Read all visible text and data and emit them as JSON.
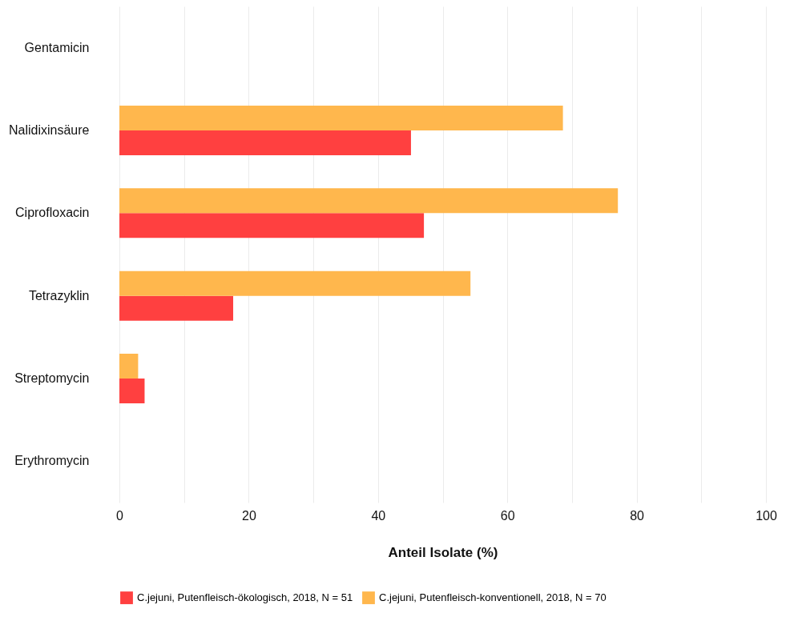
{
  "chart_data": {
    "type": "bar",
    "orientation": "horizontal",
    "xlabel": "Anteil Isolate (%)",
    "categories": [
      "Gentamicin",
      "Nalidixinsäure",
      "Ciprofloxacin",
      "Tetrazyklin",
      "Streptomycin",
      "Erythromycin"
    ],
    "series": [
      {
        "name": "C.jejuni, Putenfleisch-ökologisch, 2018, N = 51",
        "color": "#ff4040",
        "values": [
          0,
          45.1,
          47.1,
          17.6,
          3.9,
          0
        ]
      },
      {
        "name": "C.jejuni, Putenfleisch-konventionell, 2018, N = 70",
        "color": "#ffb74d",
        "values": [
          0,
          68.6,
          77.1,
          54.3,
          2.9,
          0
        ]
      }
    ],
    "xlim": [
      0,
      100
    ],
    "xticks": [
      0,
      {
        "value": 10,
        "label": null
      },
      20,
      {
        "value": 30,
        "label": null
      },
      40,
      {
        "value": 50,
        "label": null
      },
      60,
      {
        "value": 70,
        "label": null
      },
      80,
      {
        "value": 90,
        "label": null
      },
      100
    ],
    "grid": "x",
    "legend": "bottom"
  }
}
